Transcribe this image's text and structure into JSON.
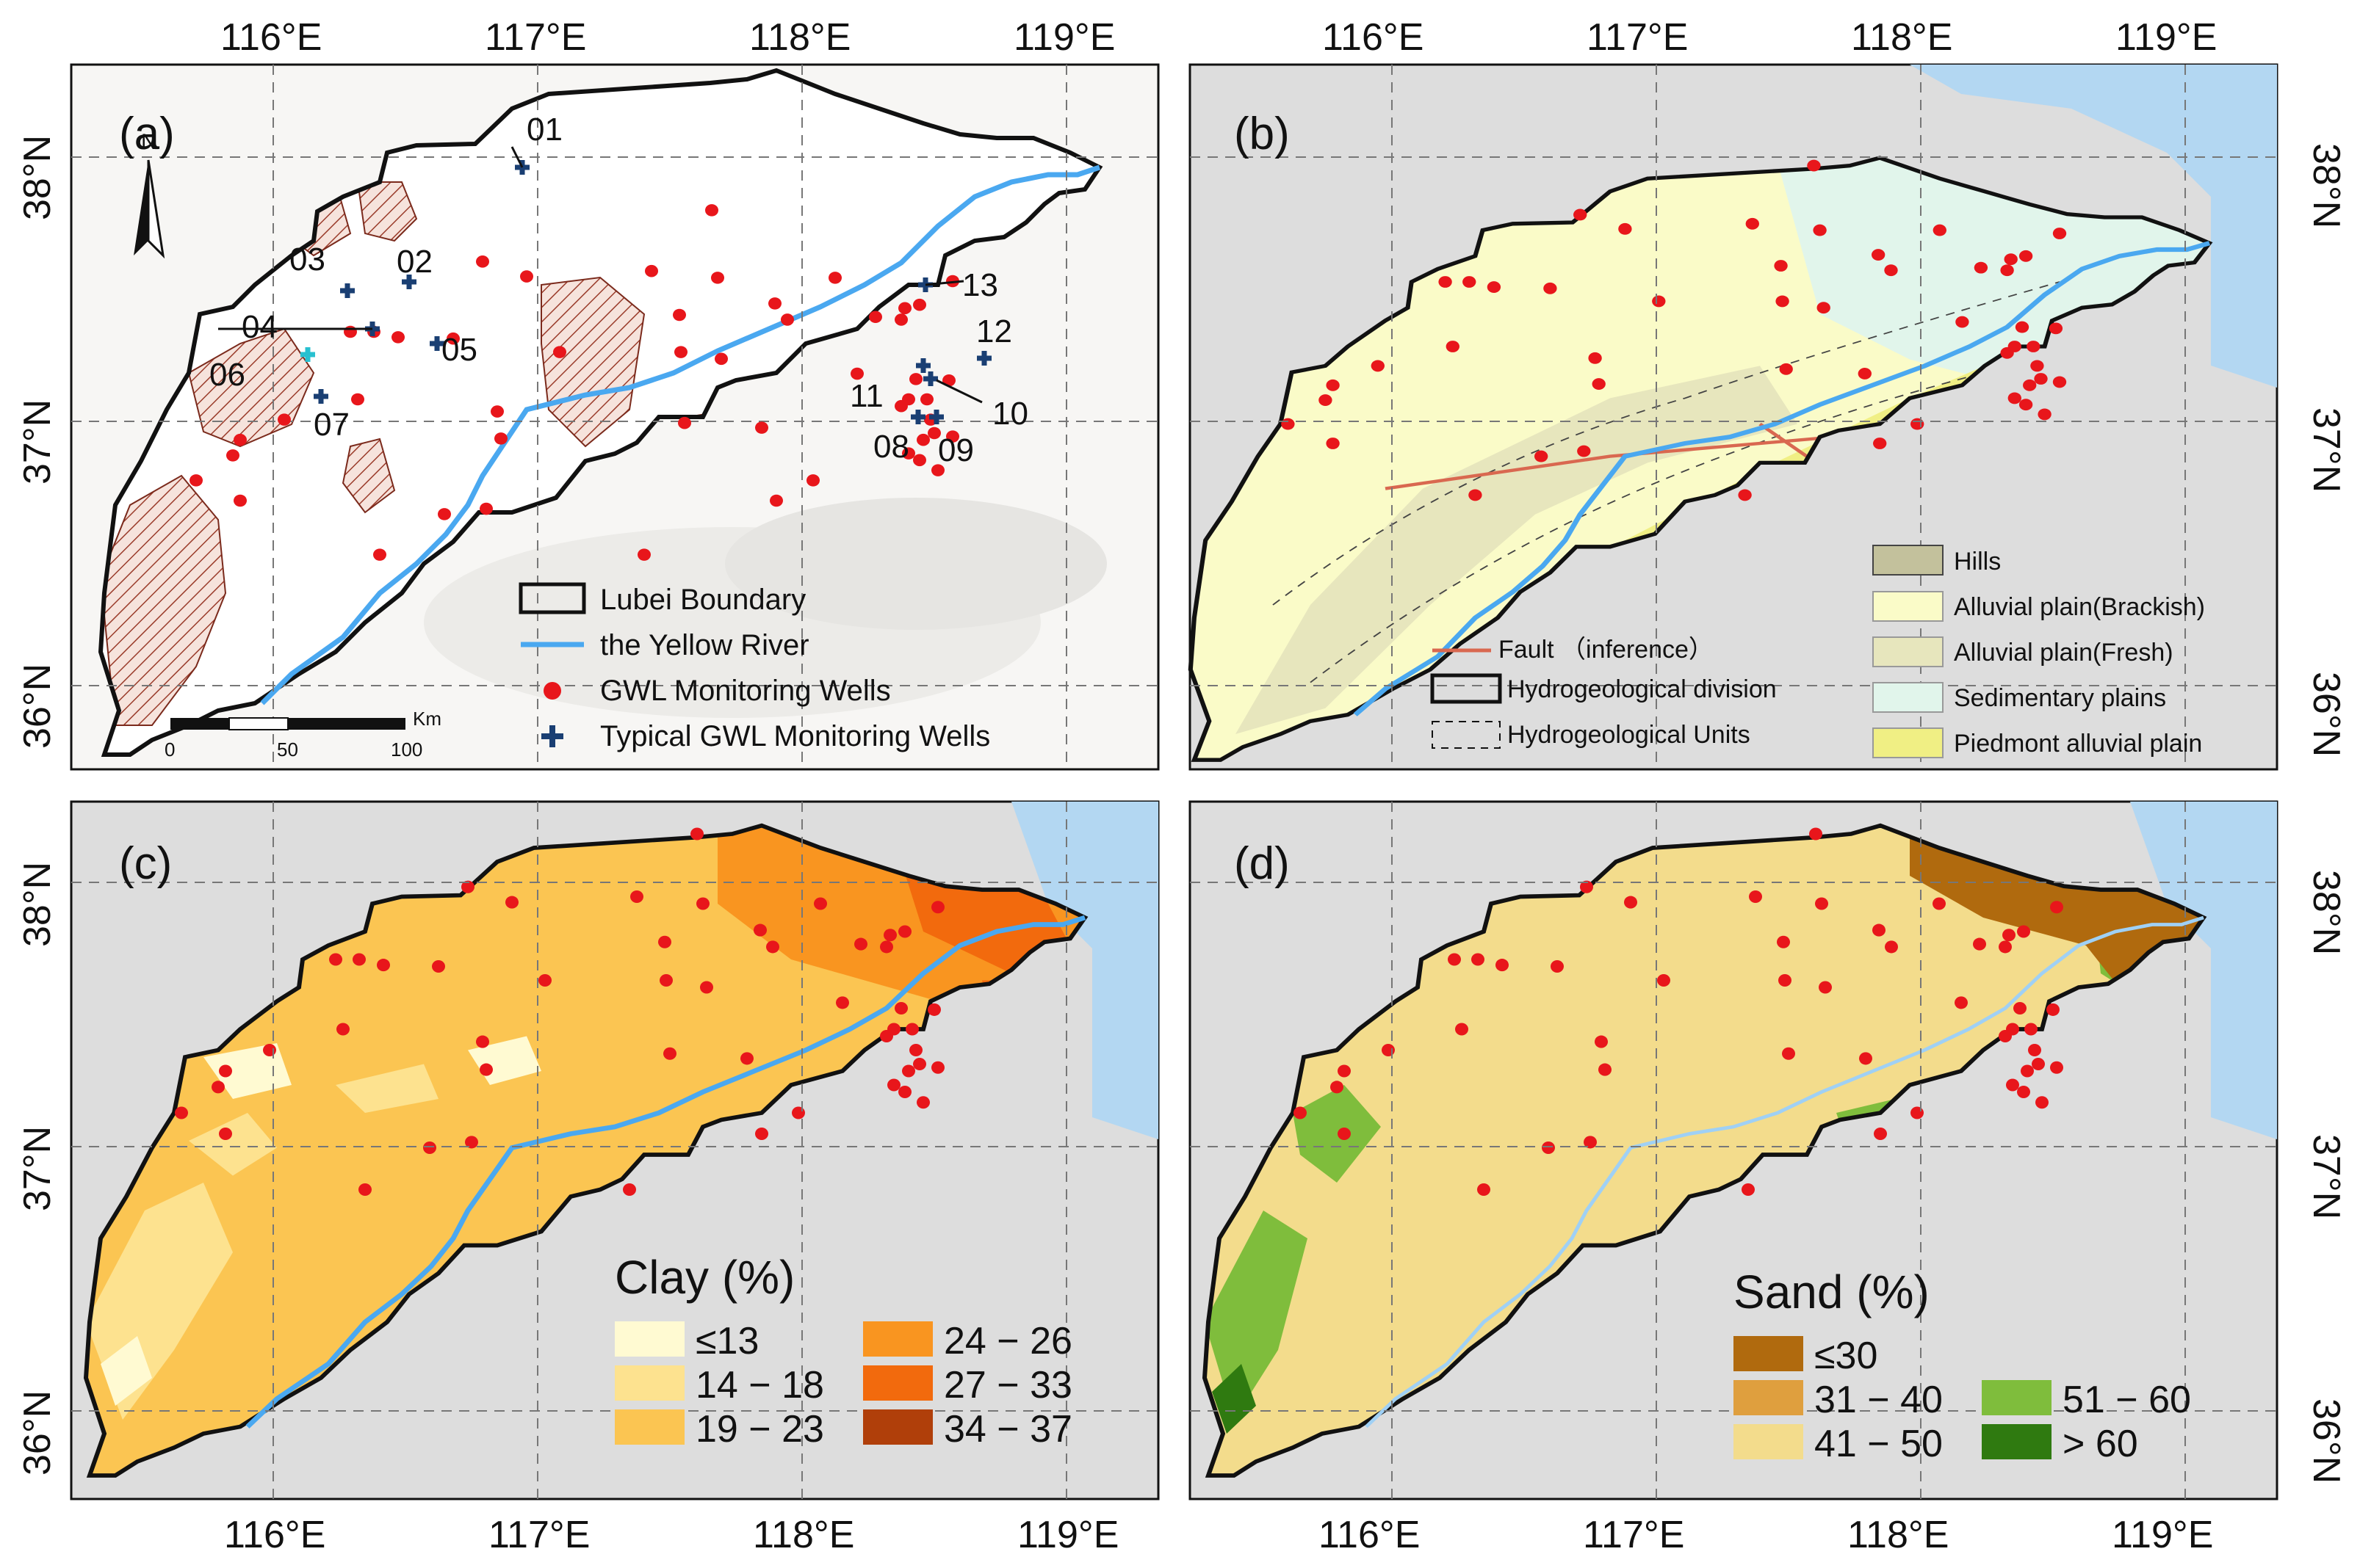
{
  "top_lon_labels": [
    "116°E",
    "117°E",
    "118°E",
    "119°E"
  ],
  "bottom_lon_labels": [
    "116°E",
    "117°E",
    "118°E",
    "119°E"
  ],
  "lat_labels_top_row": [
    "38°N",
    "37°N",
    "36°N"
  ],
  "lat_labels_bottom_row": [
    "38°N",
    "37°N",
    "36°N"
  ],
  "colors": {
    "boundary": "#111111",
    "river": "#4aa8f0",
    "well": "#e8161b",
    "typical_well": "#1a3f73",
    "typical_well_alt": "#28c0d0",
    "irrigation_hatch": "#9a3b2a",
    "sea": "#b3d7f2",
    "outside": "#dddddd",
    "fault": "#d96850",
    "hills": "#c3c19c",
    "alluvial_brackish": "#fafbc8",
    "alluvial_fresh": "#e7e6bd",
    "sedimentary": "#e1f5eb",
    "piedmont": "#f0ef84",
    "clay_le13": "#fffad2",
    "clay_14_18": "#fde28f",
    "clay_19_23": "#fbc552",
    "clay_24_26": "#f99520",
    "clay_27_33": "#f26a0d",
    "clay_34_37": "#b03f0a",
    "sand_le30": "#b06a0e",
    "sand_31_40": "#df9f3e",
    "sand_41_50": "#f3dc8c",
    "sand_51_60": "#7fbd3c",
    "sand_gt60": "#2f7a10"
  },
  "panel_a": {
    "label": "(a)",
    "north_label": "N",
    "well_ids": [
      "01",
      "02",
      "03",
      "04",
      "05",
      "06",
      "07",
      "08",
      "09",
      "10",
      "11",
      "12",
      "13"
    ],
    "legend": {
      "boundary": "Lubei Boundary",
      "river": "the Yellow River",
      "wells": "GWL Monitoring Wells",
      "typical_wells": "Typical GWL Monitoring Wells"
    },
    "scale": {
      "unit": "Km",
      "ticks": [
        "0",
        "50",
        "100"
      ]
    }
  },
  "panel_b": {
    "label": "(b)",
    "legend": {
      "fault": "Fault （inference）",
      "division": "Hydrogeological division",
      "units": "Hydrogeological Units",
      "hills": "Hills",
      "brackish": "Alluvial plain(Brackish)",
      "fresh": "Alluvial plain(Fresh)",
      "sedimentary": "Sedimentary plains",
      "piedmont": "Piedmont alluvial plain"
    }
  },
  "panel_c": {
    "label": "(c)",
    "legend_title": "Clay (%)",
    "classes": [
      "≤13",
      "14 − 18",
      "19 − 23",
      "24 − 26",
      "27 − 33",
      "34 − 37"
    ]
  },
  "panel_d": {
    "label": "(d)",
    "legend_title": "Sand (%)",
    "classes": [
      "≤30",
      "31 − 40",
      "41 − 50",
      "51 − 60",
      "> 60"
    ]
  }
}
